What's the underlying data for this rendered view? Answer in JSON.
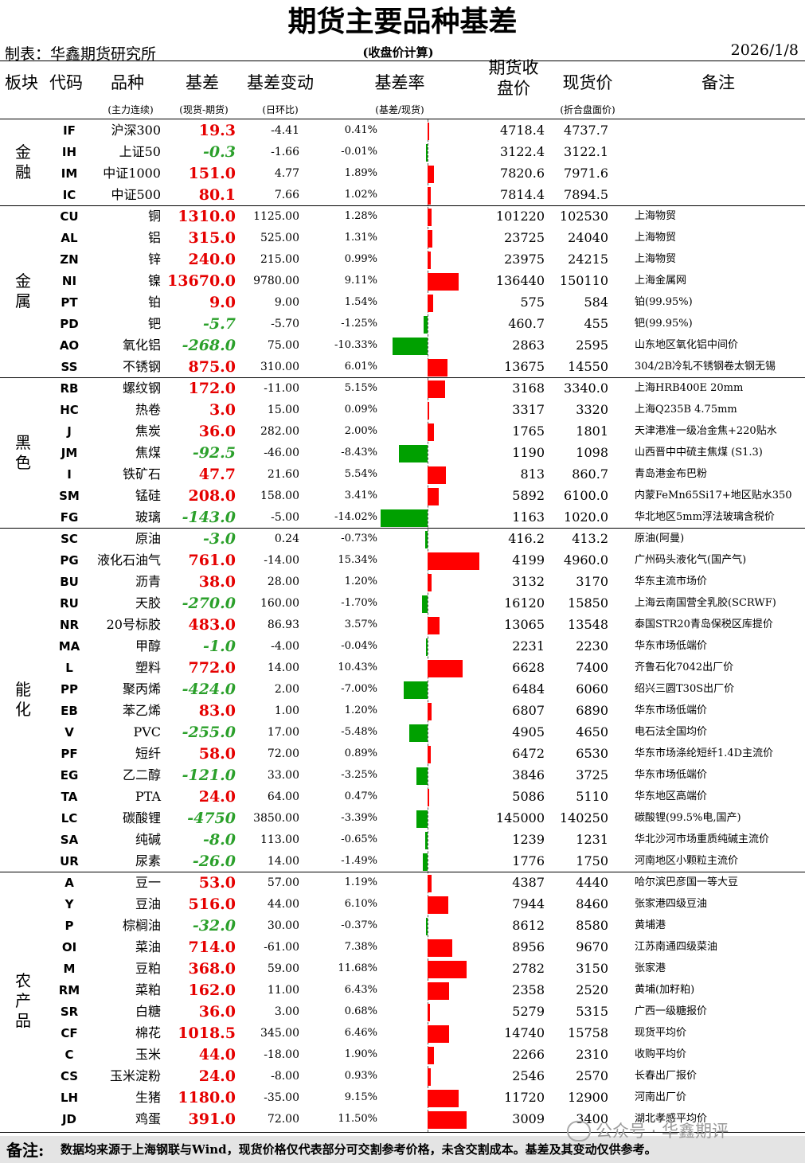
{
  "title": "期货主要品种基差",
  "maker": "制表：华鑫期货研究所",
  "calc_note": "(收盘价计算)",
  "date": "2026/1/8",
  "headers": {
    "sector": "板块",
    "code": "代码",
    "name": "品种",
    "name_sub": "(主力连续)",
    "basis": "基差",
    "basis_sub": "(现货-期货)",
    "change": "基差变动",
    "change_sub": "(日环比)",
    "rate": "基差率",
    "rate_sub": "(基差/现货)",
    "futures": "期货收盘价",
    "spot": "现货价",
    "spot_sub": "(折合盘面价)",
    "note": "备注"
  },
  "rate_scale_pct": 15.34,
  "groups": [
    {
      "name": "金融",
      "rows": [
        {
          "code": "IF",
          "name": "沪深300",
          "basis": "19.3",
          "change": "-4.41",
          "rate": "0.41%",
          "rate_value": 0.41,
          "futures": "4718.4",
          "spot": "4737.7",
          "note": ""
        },
        {
          "code": "IH",
          "name": "上证50",
          "basis": "-0.3",
          "change": "-1.66",
          "rate": "-0.01%",
          "rate_value": -0.01,
          "futures": "3122.4",
          "spot": "3122.1",
          "note": ""
        },
        {
          "code": "IM",
          "name": "中证1000",
          "basis": "151.0",
          "change": "4.77",
          "rate": "1.89%",
          "rate_value": 1.89,
          "futures": "7820.6",
          "spot": "7971.6",
          "note": ""
        },
        {
          "code": "IC",
          "name": "中证500",
          "basis": "80.1",
          "change": "7.66",
          "rate": "1.02%",
          "rate_value": 1.02,
          "futures": "7814.4",
          "spot": "7894.5",
          "note": ""
        }
      ]
    },
    {
      "name": "金属",
      "rows": [
        {
          "code": "CU",
          "name": "铜",
          "basis": "1310.0",
          "change": "1125.00",
          "rate": "1.28%",
          "rate_value": 1.28,
          "futures": "101220",
          "spot": "102530",
          "note": "上海物贸"
        },
        {
          "code": "AL",
          "name": "铝",
          "basis": "315.0",
          "change": "525.00",
          "rate": "1.31%",
          "rate_value": 1.31,
          "futures": "23725",
          "spot": "24040",
          "note": "上海物贸"
        },
        {
          "code": "ZN",
          "name": "锌",
          "basis": "240.0",
          "change": "215.00",
          "rate": "0.99%",
          "rate_value": 0.99,
          "futures": "23975",
          "spot": "24215",
          "note": "上海物贸"
        },
        {
          "code": "NI",
          "name": "镍",
          "basis": "13670.0",
          "change": "9780.00",
          "rate": "9.11%",
          "rate_value": 9.11,
          "futures": "136440",
          "spot": "150110",
          "note": "上海金属网"
        },
        {
          "code": "PT",
          "name": "铂",
          "basis": "9.0",
          "change": "9.00",
          "rate": "1.54%",
          "rate_value": 1.54,
          "futures": "575",
          "spot": "584",
          "note": "铂(99.95%)"
        },
        {
          "code": "PD",
          "name": "钯",
          "basis": "-5.7",
          "change": "-5.70",
          "rate": "-1.25%",
          "rate_value": -1.25,
          "futures": "460.7",
          "spot": "455",
          "note": "钯(99.95%)"
        },
        {
          "code": "AO",
          "name": "氧化铝",
          "basis": "-268.0",
          "change": "75.00",
          "rate": "-10.33%",
          "rate_value": -10.33,
          "futures": "2863",
          "spot": "2595",
          "note": "山东地区氧化铝中间价"
        },
        {
          "code": "SS",
          "name": "不锈钢",
          "basis": "875.0",
          "change": "310.00",
          "rate": "6.01%",
          "rate_value": 6.01,
          "futures": "13675",
          "spot": "14550",
          "note": "304/2B冷轧不锈钢卷太钢无锡"
        }
      ]
    },
    {
      "name": "黑色",
      "rows": [
        {
          "code": "RB",
          "name": "螺纹钢",
          "basis": "172.0",
          "change": "-11.00",
          "rate": "5.15%",
          "rate_value": 5.15,
          "futures": "3168",
          "spot": "3340.0",
          "note": "上海HRB400E 20mm"
        },
        {
          "code": "HC",
          "name": "热卷",
          "basis": "3.0",
          "change": "15.00",
          "rate": "0.09%",
          "rate_value": 0.09,
          "futures": "3317",
          "spot": "3320",
          "note": "上海Q235B 4.75mm"
        },
        {
          "code": "J",
          "name": "焦炭",
          "basis": "36.0",
          "change": "282.00",
          "rate": "2.00%",
          "rate_value": 2.0,
          "futures": "1765",
          "spot": "1801",
          "note": "天津港准一级冶金焦+220贴水"
        },
        {
          "code": "JM",
          "name": "焦煤",
          "basis": "-92.5",
          "change": "-46.00",
          "rate": "-8.43%",
          "rate_value": -8.43,
          "futures": "1190",
          "spot": "1098",
          "note": "山西晋中中硫主焦煤 (S1.3)"
        },
        {
          "code": "I",
          "name": "铁矿石",
          "basis": "47.7",
          "change": "21.60",
          "rate": "5.54%",
          "rate_value": 5.54,
          "futures": "813",
          "spot": "860.7",
          "note": "青岛港金布巴粉"
        },
        {
          "code": "SM",
          "name": "锰硅",
          "basis": "208.0",
          "change": "158.00",
          "rate": "3.41%",
          "rate_value": 3.41,
          "futures": "5892",
          "spot": "6100.0",
          "note": "内蒙FeMn65Si17+地区贴水350"
        },
        {
          "code": "FG",
          "name": "玻璃",
          "basis": "-143.0",
          "change": "-5.00",
          "rate": "-14.02%",
          "rate_value": -14.02,
          "futures": "1163",
          "spot": "1020.0",
          "note": "华北地区5mm浮法玻璃含税价"
        }
      ]
    },
    {
      "name": "能化",
      "rows": [
        {
          "code": "SC",
          "name": "原油",
          "basis": "-3.0",
          "change": "0.24",
          "rate": "-0.73%",
          "rate_value": -0.73,
          "futures": "416.2",
          "spot": "413.2",
          "note": "原油(阿曼)"
        },
        {
          "code": "PG",
          "name": "液化石油气",
          "basis": "761.0",
          "change": "-14.00",
          "rate": "15.34%",
          "rate_value": 15.34,
          "futures": "4199",
          "spot": "4960.0",
          "note": "广州码头液化气(国产气)"
        },
        {
          "code": "BU",
          "name": "沥青",
          "basis": "38.0",
          "change": "28.00",
          "rate": "1.20%",
          "rate_value": 1.2,
          "futures": "3132",
          "spot": "3170",
          "note": "华东主流市场价"
        },
        {
          "code": "RU",
          "name": "天胶",
          "basis": "-270.0",
          "change": "160.00",
          "rate": "-1.70%",
          "rate_value": -1.7,
          "futures": "16120",
          "spot": "15850",
          "note": "上海云南国营全乳胶(SCRWF)"
        },
        {
          "code": "NR",
          "name": "20号标胶",
          "basis": "483.0",
          "change": "86.93",
          "rate": "3.57%",
          "rate_value": 3.57,
          "futures": "13065",
          "spot": "13548",
          "note": "泰国STR20青岛保税区库提价"
        },
        {
          "code": "MA",
          "name": "甲醇",
          "basis": "-1.0",
          "change": "-4.00",
          "rate": "-0.04%",
          "rate_value": -0.04,
          "futures": "2231",
          "spot": "2230",
          "note": "华东市场低端价"
        },
        {
          "code": "L",
          "name": "塑料",
          "basis": "772.0",
          "change": "14.00",
          "rate": "10.43%",
          "rate_value": 10.43,
          "futures": "6628",
          "spot": "7400",
          "note": "齐鲁石化7042出厂价"
        },
        {
          "code": "PP",
          "name": "聚丙烯",
          "basis": "-424.0",
          "change": "2.00",
          "rate": "-7.00%",
          "rate_value": -7.0,
          "futures": "6484",
          "spot": "6060",
          "note": "绍兴三圆T30S出厂价"
        },
        {
          "code": "EB",
          "name": "苯乙烯",
          "basis": "83.0",
          "change": "1.00",
          "rate": "1.20%",
          "rate_value": 1.2,
          "futures": "6807",
          "spot": "6890",
          "note": "华东市场低端价"
        },
        {
          "code": "V",
          "name": "PVC",
          "basis": "-255.0",
          "change": "17.00",
          "rate": "-5.48%",
          "rate_value": -5.48,
          "futures": "4905",
          "spot": "4650",
          "note": "电石法全国均价"
        },
        {
          "code": "PF",
          "name": "短纤",
          "basis": "58.0",
          "change": "72.00",
          "rate": "0.89%",
          "rate_value": 0.89,
          "futures": "6472",
          "spot": "6530",
          "note": "华东市场涤纶短纤1.4D主流价"
        },
        {
          "code": "EG",
          "name": "乙二醇",
          "basis": "-121.0",
          "change": "33.00",
          "rate": "-3.25%",
          "rate_value": -3.25,
          "futures": "3846",
          "spot": "3725",
          "note": "华东市场低端价"
        },
        {
          "code": "TA",
          "name": "PTA",
          "basis": "24.0",
          "change": "64.00",
          "rate": "0.47%",
          "rate_value": 0.47,
          "futures": "5086",
          "spot": "5110",
          "note": "华东地区高端价"
        },
        {
          "code": "LC",
          "name": "碳酸锂",
          "basis": "-4750",
          "change": "3850.00",
          "rate": "-3.39%",
          "rate_value": -3.39,
          "futures": "145000",
          "spot": "140250",
          "note": "碳酸锂(99.5%电,国产)"
        },
        {
          "code": "SA",
          "name": "纯碱",
          "basis": "-8.0",
          "change": "113.00",
          "rate": "-0.65%",
          "rate_value": -0.65,
          "futures": "1239",
          "spot": "1231",
          "note": "华北沙河市场重质纯碱主流价"
        },
        {
          "code": "UR",
          "name": "尿素",
          "basis": "-26.0",
          "change": "14.00",
          "rate": "-1.49%",
          "rate_value": -1.49,
          "futures": "1776",
          "spot": "1750",
          "note": "河南地区小颗粒主流价"
        }
      ]
    },
    {
      "name": "农产品",
      "rows": [
        {
          "code": "A",
          "name": "豆一",
          "basis": "53.0",
          "change": "57.00",
          "rate": "1.19%",
          "rate_value": 1.19,
          "futures": "4387",
          "spot": "4440",
          "note": "哈尔滨巴彦国一等大豆"
        },
        {
          "code": "Y",
          "name": "豆油",
          "basis": "516.0",
          "change": "44.00",
          "rate": "6.10%",
          "rate_value": 6.1,
          "futures": "7944",
          "spot": "8460",
          "note": "张家港四级豆油"
        },
        {
          "code": "P",
          "name": "棕榈油",
          "basis": "-32.0",
          "change": "30.00",
          "rate": "-0.37%",
          "rate_value": -0.37,
          "futures": "8612",
          "spot": "8580",
          "note": "黄埔港"
        },
        {
          "code": "OI",
          "name": "菜油",
          "basis": "714.0",
          "change": "-61.00",
          "rate": "7.38%",
          "rate_value": 7.38,
          "futures": "8956",
          "spot": "9670",
          "note": "江苏南通四级菜油"
        },
        {
          "code": "M",
          "name": "豆粕",
          "basis": "368.0",
          "change": "59.00",
          "rate": "11.68%",
          "rate_value": 11.68,
          "futures": "2782",
          "spot": "3150",
          "note": "张家港"
        },
        {
          "code": "RM",
          "name": "菜粕",
          "basis": "162.0",
          "change": "11.00",
          "rate": "6.43%",
          "rate_value": 6.43,
          "futures": "2358",
          "spot": "2520",
          "note": "黄埔(加籽粕)"
        },
        {
          "code": "SR",
          "name": "白糖",
          "basis": "36.0",
          "change": "3.00",
          "rate": "0.68%",
          "rate_value": 0.68,
          "futures": "5279",
          "spot": "5315",
          "note": "广西一级糖报价"
        },
        {
          "code": "CF",
          "name": "棉花",
          "basis": "1018.5",
          "change": "345.00",
          "rate": "6.46%",
          "rate_value": 6.46,
          "futures": "14740",
          "spot": "15758",
          "note": "现货平均价"
        },
        {
          "code": "C",
          "name": "玉米",
          "basis": "44.0",
          "change": "-18.00",
          "rate": "1.90%",
          "rate_value": 1.9,
          "futures": "2266",
          "spot": "2310",
          "note": "收购平均价"
        },
        {
          "code": "CS",
          "name": "玉米淀粉",
          "basis": "24.0",
          "change": "-8.00",
          "rate": "0.93%",
          "rate_value": 0.93,
          "futures": "2546",
          "spot": "2570",
          "note": "长春出厂报价"
        },
        {
          "code": "LH",
          "name": "生猪",
          "basis": "1180.0",
          "change": "-35.00",
          "rate": "9.15%",
          "rate_value": 9.15,
          "futures": "11720",
          "spot": "12900",
          "note": "河南出厂价"
        },
        {
          "code": "JD",
          "name": "鸡蛋",
          "basis": "391.0",
          "change": "72.00",
          "rate": "11.50%",
          "rate_value": 11.5,
          "futures": "3009",
          "spot": "3400",
          "note": "湖北孝感平均价"
        }
      ]
    }
  ],
  "footer": {
    "label": "备注:",
    "text": "数据均来源于上海钢联与Wind，现货价格仅代表部分可交割参考价格，未含交割成本。基差及其变动仅供参考。"
  },
  "watermark": {
    "text": "公众号 · 华鑫期评",
    "icon": "wechat-icon"
  },
  "colors": {
    "positive": "#e50000",
    "negative": "#2ba02b",
    "bar_positive": "#ff0000",
    "bar_negative": "#00a000"
  }
}
